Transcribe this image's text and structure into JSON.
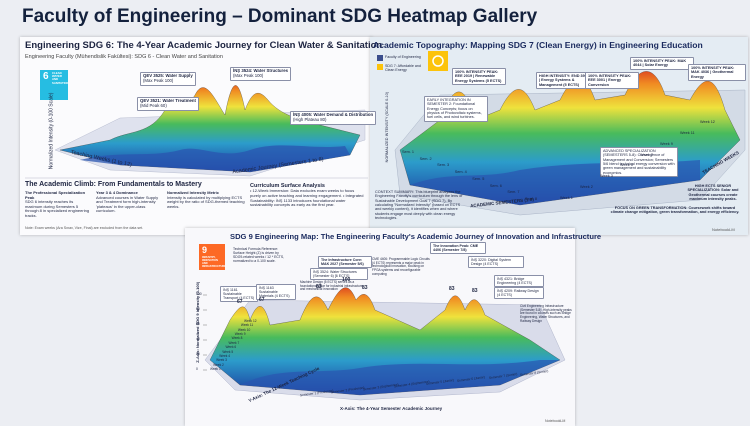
{
  "header": {
    "title": "Faculty of Engineering – Dominant SDG Heatmap Gallery"
  },
  "sdg6": {
    "title": "Engineering SDG 6: The 4-Year Academic Journey for Clean Water & Sanitation",
    "subtitle": "Engineering Faculty (Mühendislik Fakültesi): SDG 6 - Clean Water and Sanitation",
    "badge": {
      "number": "6",
      "label": "CLEAN WATER AND SANITATION"
    },
    "annotations": [
      {
        "course": "QEV 3525: Water Supply",
        "note": "(Max Peak 100)"
      },
      {
        "course": "İNŞ 3524: Water Structures",
        "note": "(Max Peak 100)"
      },
      {
        "course": "QEV 3521: Water Treatment",
        "note": "(Mid Peak 60)"
      },
      {
        "course": "İNŞ 4005: Water Demand & Distribution",
        "note": "(High Plateau 80)"
      }
    ],
    "axes": {
      "z": "Normalized Intensity (0-100 Scale)",
      "y": "Teaching Weeks (1 to 12)",
      "x": "Academic Journey (Semesters 1 to 8)"
    },
    "section_title": "The Academic Climb: From Fundamentals to Mastery",
    "columns": [
      {
        "heading": "The Professional Specialization Peak",
        "text": "SDG 6 intensity reaches its maximum during Semesters 5 through 8 in specialized engineering tracks."
      },
      {
        "heading": "Year 3 & 4 Dominance",
        "text": "Advanced courses in Water Supply and Treatment form high-intensity 'plateaus' in the upper-class curriculum."
      },
      {
        "heading": "Normalized Intensity Metric",
        "text": "Intensity is calculated by multiplying ECTS weight by the ratio of SDG-themed teaching weeks."
      },
      {
        "heading": "Curriculum Surface Analysis",
        "text": "• 12-Week Immersion: Data excludes exam weeks to focus purely on active teaching and learning engagement. • Integrated Sustainability: İNŞ 1133 introduces foundational water sustainability concepts as early as the first year."
      }
    ],
    "note": "Note: Exam weeks (Ara Sınav, Vize, Final) are excluded from the data set."
  },
  "sdg7": {
    "title": "Academic Topography: Mapping SDG 7 (Clean Energy) in Engineering Education",
    "legend": [
      "Faculty of Engineering",
      "SDG 7: Affordable and Clean Energy"
    ],
    "annotations": [
      "100% INTENSITY PEAK: EEE 2019 | Renewable Energy Systems (5 ECTS)",
      "HIGH INTENSITY: END 3964 | Energy Systems & Management (5 ECTS)",
      "100% INTENSITY PEAK: EEE 3001 | Energy Conversion",
      "100% INTENSITY PEAK: MAK 4044 | Solar Energy",
      "100% INTENSITY PEAK: MAK 4036 | Geothermal Energy",
      "EARLY INTEGRATION IN SEMESTER 2: Foundational Energy Concepts; focus on physics of Photovoltaic systems, fuel cells, and wind turbines.",
      "ADVANCED SPECIALIZATION (SEMESTERS 5-8): Convergence of Management and Conversion; Semesters 5/6 blend technical energy conversion with green management and sustainability economics.",
      "HIGH ECTS SENIOR SPECIALIZATION: Solar and Geothermal courses create maximum intensity peaks.",
      "FOCUS ON GREEN TRANSFORMATION: Coursework shifts toward climate change mitigation, green transformation, and energy efficiency."
    ],
    "context": "CONTEXT SUMMARY: This blueprint analyzes the Engineering Faculty's curriculum through the lens of Sustainable Development Goal 7 (SDG 7). By calculating \"Normalized Intensity\" (based on ECTS and weekly content), it identifies when and where students engage most deeply with clean energy technologies.",
    "axes": {
      "z": "NORMALIZED INTENSITY (SCALE 0-10)",
      "x": "ACADEMIC SEMESTERS (1-8)",
      "y": "TEACHING WEEKS"
    },
    "semesters": [
      "Sem. 1",
      "Sem. 2",
      "Sem. 3",
      "Sem. 4",
      "Sem. 5",
      "Sem. 6",
      "Sem. 7",
      "Sem. 8"
    ],
    "weeks": [
      "Week 1",
      "Week 2",
      "Week 3",
      "Week 5",
      "Week 7",
      "Week 9",
      "Week 11",
      "Week 12"
    ],
    "footer": "NotebookLM"
  },
  "sdg9": {
    "title": "SDG 9 Engineering Map: The Engineering Faculty's Academic Journey of Innovation and Infrastructure",
    "badge": {
      "number": "9",
      "label": "INDUSTRY, INNOVATION AND INFRASTRUCTURE"
    },
    "annotations": [
      "Technical Formula Reference: Surface Height (Z) is driven by SDG9-related weeks / 12 * ECTS, normalized to a 0-100 scale.",
      "İNŞ 1161 Sustainable Transport (4 ECTS)",
      "İNŞ 1163 Sustainable Materials (4 ECTS)",
      "The Infrastructure Core: MAK 2027 (Semester 5/6)",
      "İNŞ 3524: Water Structures (Semester 6) [6 ECTS]",
      "Machine Design (5 ECTS) serves as a foundational pillar for industrial infrastructure and mechanical innovation",
      "CME 4406: Programmable Logic Circuits (4 ECTS) represents a major peak in technological innovation, focusing on FPGA systems and reconfigurable computing",
      "The Innovation Peak: CME 4406 (Semester 7/8)",
      "İNŞ 3220: Digital System Design (4 ECTS)",
      "İNŞ 4321: Bridge Engineering (4 ECTS)",
      "İNŞ 4209: Railway Design (4 ECTS)",
      "Civil Engineering Infrastructure (Semester 5-8): High-intensity peaks are found in courses such as Bridge Engineering, Water Structures, and Railway Design"
    ],
    "peaks": [
      67,
      67,
      83,
      100,
      83,
      83,
      83
    ],
    "axes": {
      "z": "Z-Axis: Normalized SDG 9 Intensity (0-100)",
      "x": "X-Axis: The 4-Year Semester Academic Journey",
      "y": "Y-Axis: The 12-Week Teaching Cycle"
    },
    "zticks": [
      0,
      20,
      40,
      60,
      80,
      100
    ],
    "semesters": [
      "Semester 1 (Freshman)",
      "Semester 2 (Freshman)",
      "Semester 3 (Sophomore)",
      "Semester 4 (Sophomore)",
      "Semester 5 (Junior)",
      "Semester 6 (Junior)",
      "Semester 7 (Senior)",
      "Semester 8 (Senior)"
    ],
    "weeks": [
      "Week 1",
      "Week 2",
      "Week 3",
      "Week 4",
      "Week 5",
      "Week 6",
      "Week 7",
      "Week 8",
      "Week 9",
      "Week 10",
      "Week 11",
      "Week 12"
    ],
    "footer": "NotebookLM"
  }
}
